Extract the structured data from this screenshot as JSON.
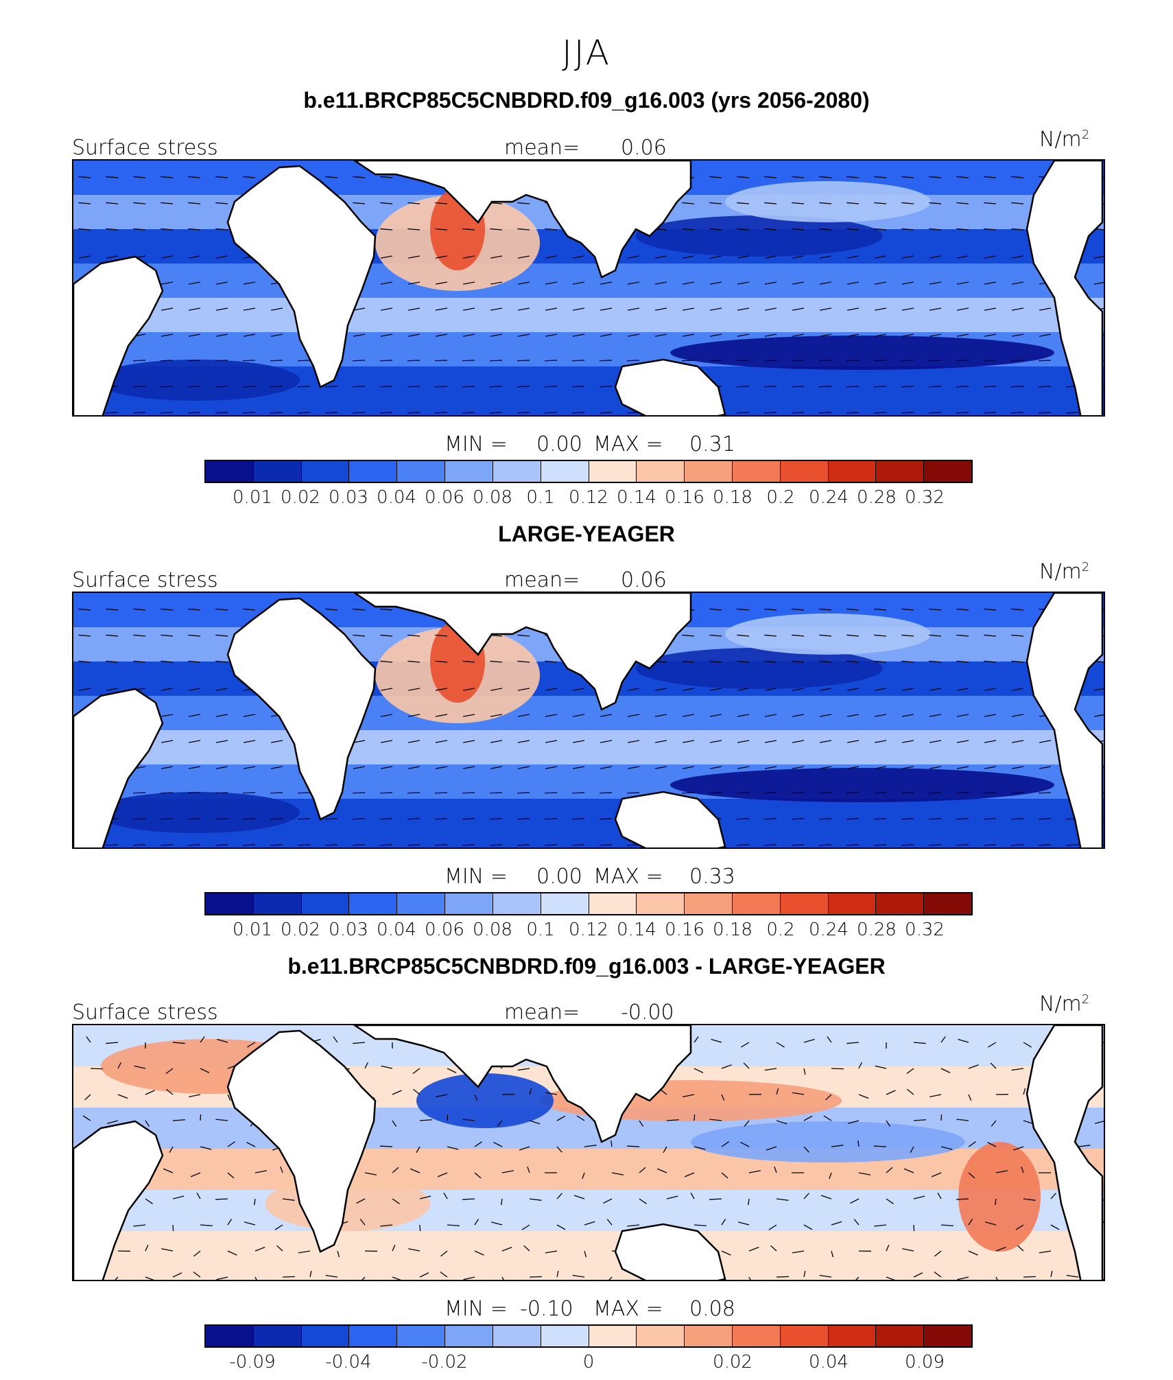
{
  "season": "JJA",
  "colors": [
    "#08108e",
    "#0a2bb0",
    "#1448d6",
    "#2a64f0",
    "#4a82f5",
    "#7da6f8",
    "#a8c4fa",
    "#cfe0fc",
    "#fde4d2",
    "#fbc6a8",
    "#f7a07c",
    "#f27a55",
    "#e8502e",
    "#d02d15",
    "#ad1a0a",
    "#840a05"
  ],
  "panels": [
    {
      "title": "b.e11.BRCP85C5CNBDRD.f09_g16.003 (yrs 2056-2080)",
      "left_label": "Surface stress",
      "mean_label": "mean=",
      "mean_value": "0.06",
      "units": "N/m",
      "units_sup": "2",
      "min_label": "MIN =",
      "min_value": "0.00",
      "max_label": "MAX =",
      "max_value": "0.31",
      "ticks": [
        "0.01",
        "0.02",
        "0.03",
        "0.04",
        "0.06",
        "0.08",
        "0.1",
        "0.12",
        "0.14",
        "0.16",
        "0.18",
        "0.2",
        "0.24",
        "0.28",
        "0.32"
      ]
    },
    {
      "title": "LARGE-YEAGER",
      "left_label": "Surface stress",
      "mean_label": "mean=",
      "mean_value": "0.06",
      "units": "N/m",
      "units_sup": "2",
      "min_label": "MIN =",
      "min_value": "0.00",
      "max_label": "MAX =",
      "max_value": "0.33",
      "ticks": [
        "0.01",
        "0.02",
        "0.03",
        "0.04",
        "0.06",
        "0.08",
        "0.1",
        "0.12",
        "0.14",
        "0.16",
        "0.18",
        "0.2",
        "0.24",
        "0.28",
        "0.32"
      ]
    },
    {
      "title": "b.e11.BRCP85C5CNBDRD.f09_g16.003 - LARGE-YEAGER",
      "left_label": "Surface stress",
      "mean_label": "mean=",
      "mean_value": "-0.00",
      "units": "N/m",
      "units_sup": "2",
      "min_label": "MIN =",
      "min_value": "-0.10",
      "max_label": "MAX =",
      "max_value": "0.08",
      "ticks": [
        "-0.09",
        "",
        "-0.04",
        "",
        "-0.02",
        "",
        "",
        "0",
        "",
        "",
        "0.02",
        "",
        "0.04",
        "",
        "0.09"
      ]
    }
  ]
}
